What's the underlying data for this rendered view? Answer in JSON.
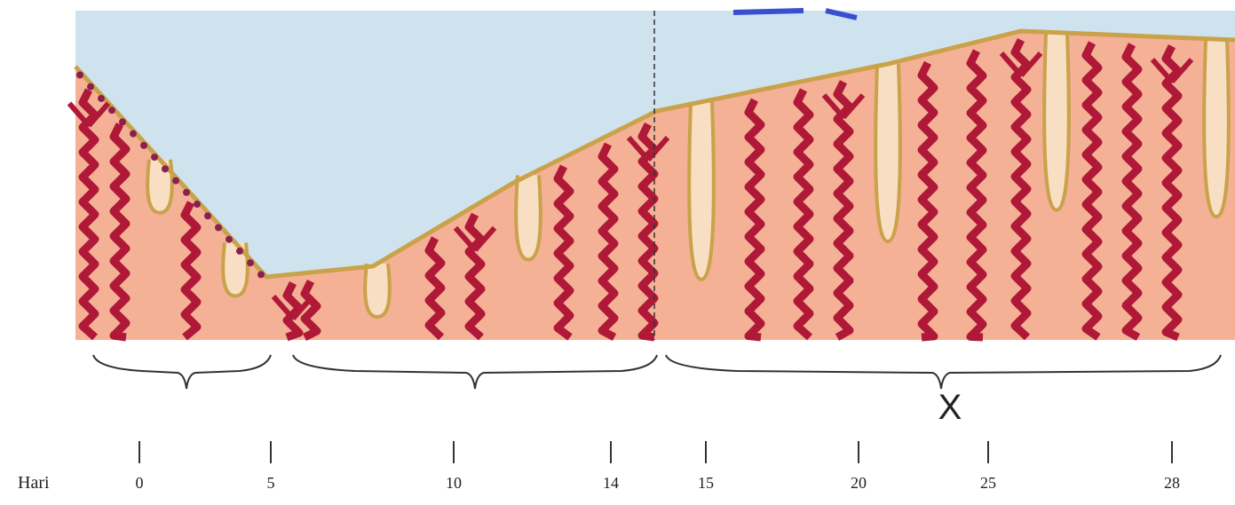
{
  "axis": {
    "label": "Hari",
    "ticks": [
      "0",
      "5",
      "10",
      "14",
      "15",
      "20",
      "25",
      "28"
    ]
  },
  "marker": "X"
}
